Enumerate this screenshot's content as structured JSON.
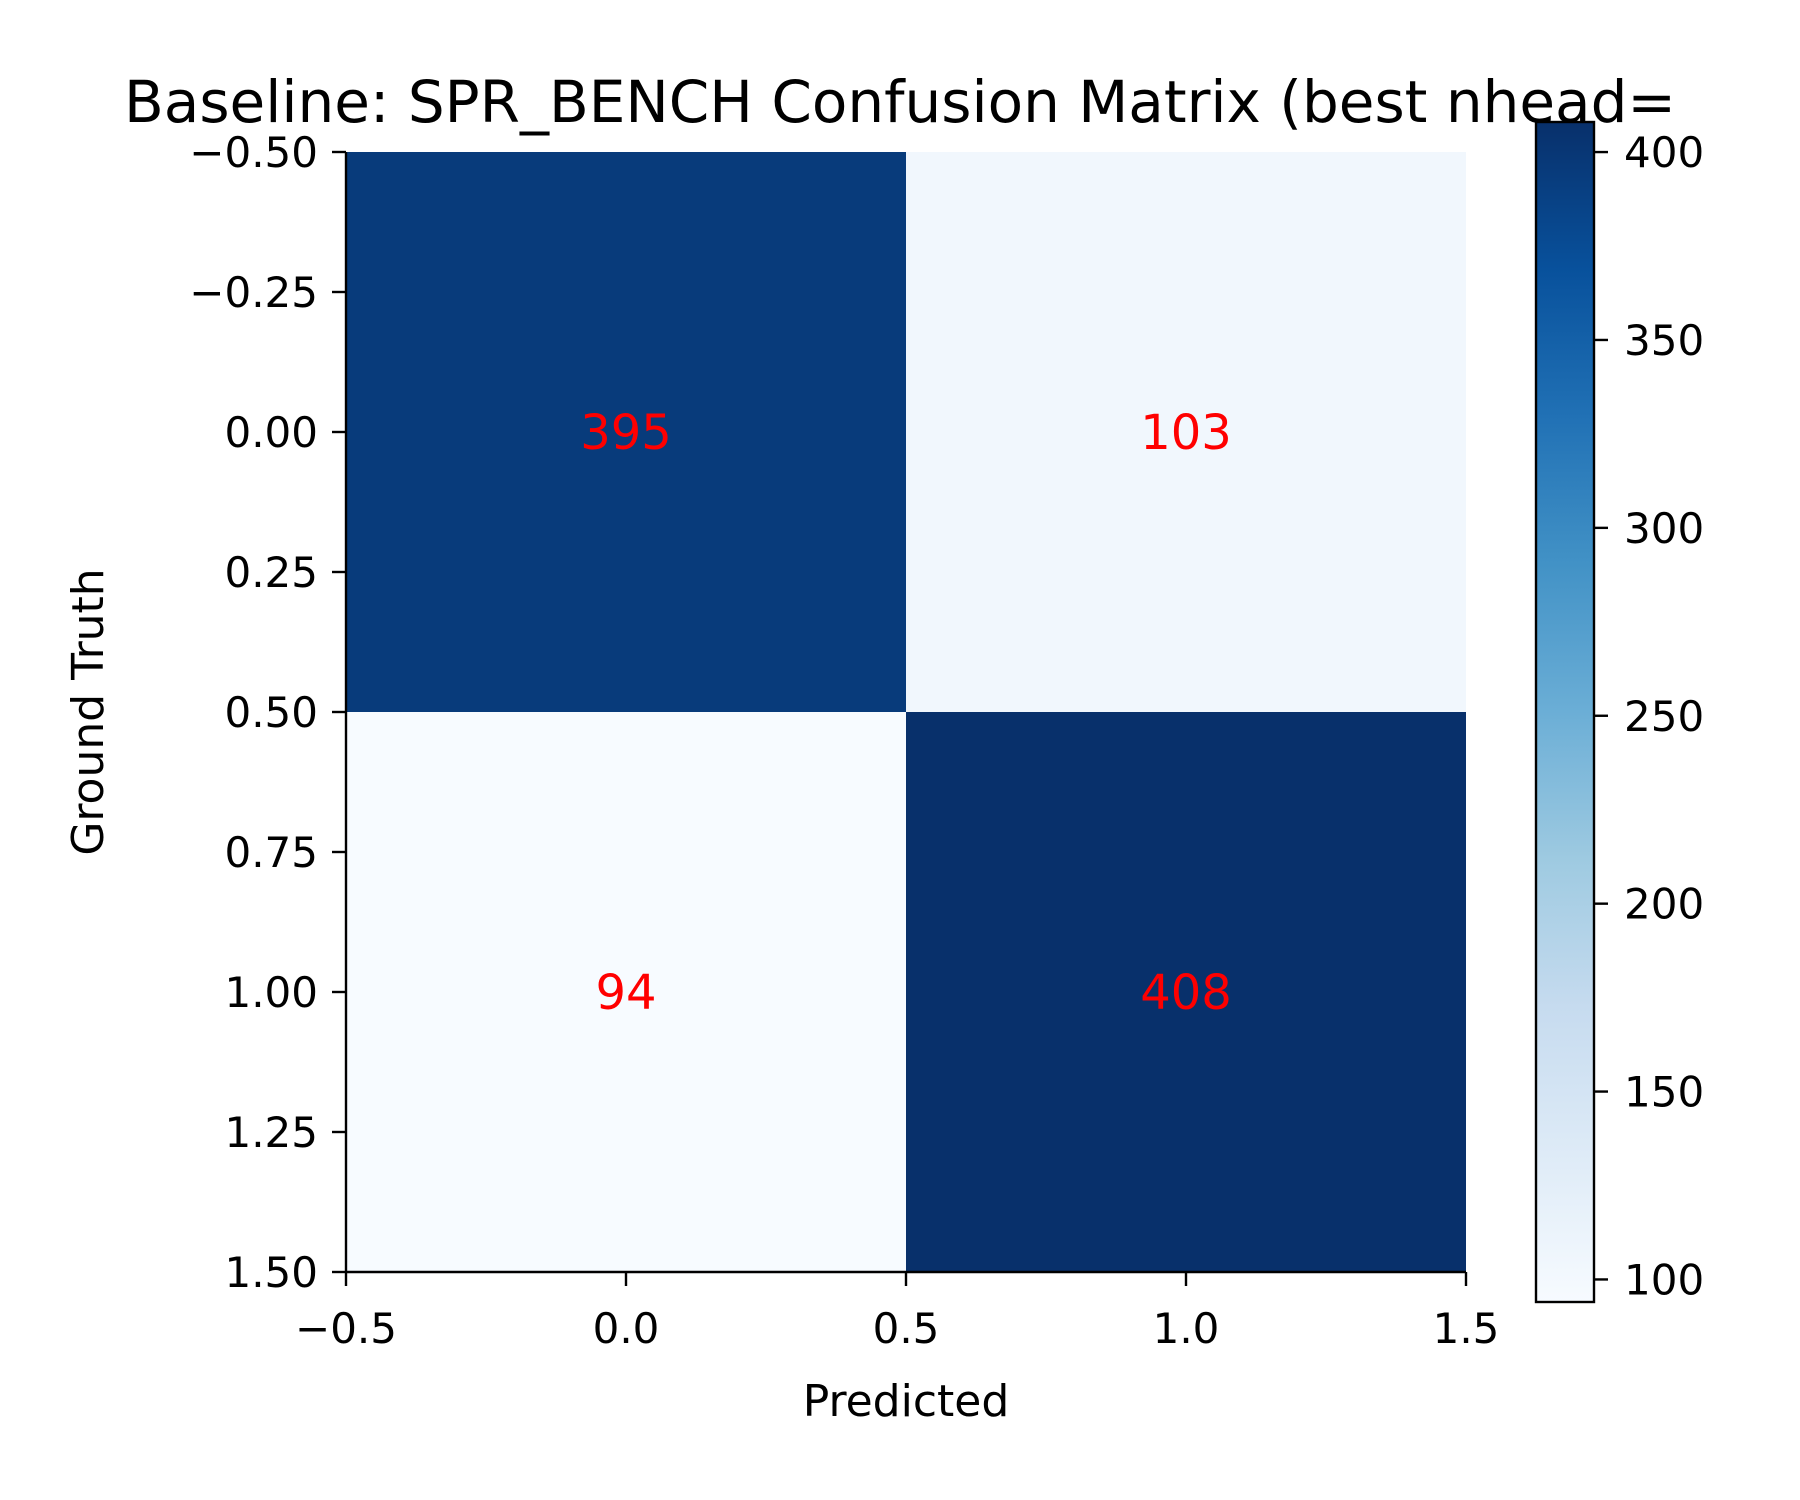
{
  "chart_data": {
    "type": "heatmap",
    "title": "Baseline: SPR_BENCH Confusion Matrix (best nhead=",
    "xlabel": "Predicted",
    "ylabel": "Ground Truth",
    "x_ticks": [
      "−0.5",
      "0.0",
      "0.5",
      "1.0",
      "1.5"
    ],
    "y_ticks": [
      "−0.50",
      "−0.25",
      "0.00",
      "0.25",
      "0.50",
      "0.75",
      "1.00",
      "1.25",
      "1.50"
    ],
    "xlim": [
      -0.5,
      1.5
    ],
    "ylim": [
      1.5,
      -0.5
    ],
    "matrix": [
      [
        395,
        103
      ],
      [
        94,
        408
      ]
    ],
    "cell_labels": [
      [
        "395",
        "103"
      ],
      [
        "94",
        "408"
      ]
    ],
    "cell_label_color": "#ff0000",
    "colormap": "Blues",
    "colorbar": {
      "min": 94,
      "max": 408,
      "ticks": [
        "100",
        "150",
        "200",
        "250",
        "300",
        "350",
        "400"
      ]
    },
    "grid": false
  }
}
